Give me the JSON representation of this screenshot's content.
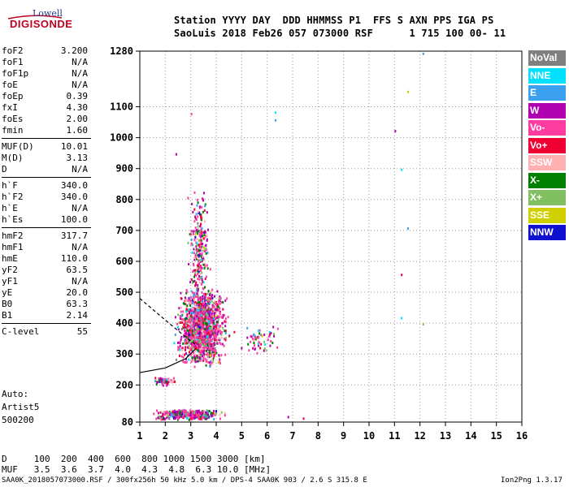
{
  "logo": {
    "line1": "Lowell",
    "line2": "DIGISONDE"
  },
  "header": {
    "line1": "Station YYYY DAY  DDD HHMMSS P1  FFS S AXN PPS IGA PS",
    "line2": "SaoLuis 2018 Feb26 057 073000 RSF      1 715 100 00- 11"
  },
  "params": [
    {
      "group": [
        {
          "name": "foF2",
          "value": "3.200"
        },
        {
          "name": "foF1",
          "value": "N/A"
        },
        {
          "name": "foF1p",
          "value": "N/A"
        },
        {
          "name": "foE",
          "value": "N/A"
        },
        {
          "name": "foEp",
          "value": "0.39"
        },
        {
          "name": "fxI",
          "value": "4.30"
        },
        {
          "name": "foEs",
          "value": "2.00"
        },
        {
          "name": "fmin",
          "value": "1.60"
        }
      ]
    },
    {
      "group": [
        {
          "name": "MUF(D)",
          "value": "10.01"
        },
        {
          "name": "M(D)",
          "value": "3.13"
        },
        {
          "name": "D",
          "value": "N/A"
        }
      ]
    },
    {
      "group": [
        {
          "name": "h`F",
          "value": "340.0"
        },
        {
          "name": "h`F2",
          "value": "340.0"
        },
        {
          "name": "h`E",
          "value": "N/A"
        },
        {
          "name": "h`Es",
          "value": "100.0"
        }
      ]
    },
    {
      "group": [
        {
          "name": "hmF2",
          "value": "317.7"
        },
        {
          "name": "hmF1",
          "value": "N/A"
        },
        {
          "name": "hmE",
          "value": "110.0"
        },
        {
          "name": "yF2",
          "value": "63.5"
        },
        {
          "name": "yF1",
          "value": "N/A"
        },
        {
          "name": "yE",
          "value": "20.0"
        },
        {
          "name": "B0",
          "value": "63.3"
        },
        {
          "name": "B1",
          "value": "2.14"
        }
      ]
    },
    {
      "group": [
        {
          "name": "C-level",
          "value": "55"
        }
      ]
    }
  ],
  "autoscale": {
    "line1": "Auto:",
    "line2": "Artist5",
    "line3": "500200"
  },
  "footer": {
    "d_line": "D     100  200  400  600  800 1000 1500 3000 [km]",
    "muf_line": "MUF   3.5  3.6  3.7  4.0  4.3  4.8  6.3 10.0 [MHz]",
    "info_line": "SAA0K_2018057073000.RSF / 300fx256h 50 kHz 5.0 km / DPS-4 SAA0K 903 / 2.6 S 315.8 E",
    "version": "Ion2Png 1.3.17"
  },
  "legend": [
    {
      "label": "NoVal",
      "color": "#808080"
    },
    {
      "label": "NNE",
      "color": "#00e0ff"
    },
    {
      "label": "E",
      "color": "#3ca0f0"
    },
    {
      "label": "W",
      "color": "#b000b0"
    },
    {
      "label": "Vo-",
      "color": "#ff3ca0"
    },
    {
      "label": "Vo+",
      "color": "#f00032"
    },
    {
      "label": "SSW",
      "color": "#ffb0b0"
    },
    {
      "label": "X-",
      "color": "#008000"
    },
    {
      "label": "X+",
      "color": "#80c060"
    },
    {
      "label": "SSE",
      "color": "#d0d000"
    },
    {
      "label": "NNW",
      "color": "#1010d0"
    }
  ],
  "chart_data": {
    "type": "scatter",
    "xlim": [
      1,
      16
    ],
    "ylim": [
      80,
      1280
    ],
    "x_ticks": [
      1,
      2,
      3,
      4,
      5,
      6,
      7,
      8,
      9,
      10,
      11,
      12,
      13,
      14,
      15,
      16
    ],
    "y_ticks": [
      80,
      200,
      300,
      400,
      500,
      600,
      700,
      800,
      900,
      1000,
      1100,
      1280
    ],
    "grid": true,
    "legend_position": "right",
    "profile_curve": [
      [
        1.0,
        240
      ],
      [
        2.0,
        255
      ],
      [
        2.8,
        285
      ],
      [
        3.2,
        317.7
      ]
    ],
    "profile_extrapolation": [
      [
        1.0,
        480
      ],
      [
        2.0,
        410
      ],
      [
        2.8,
        355
      ],
      [
        3.2,
        330
      ]
    ],
    "clusters": [
      {
        "name": "F2 trace",
        "x": [
          2.2,
          4.6
        ],
        "y": [
          260,
          520
        ],
        "density": 1400
      },
      {
        "name": "F2 tall column",
        "x": [
          2.8,
          3.8
        ],
        "y": [
          440,
          840
        ],
        "density": 260
      },
      {
        "name": "Es layer",
        "x": [
          1.2,
          4.6
        ],
        "y": [
          90,
          125
        ],
        "density": 380
      },
      {
        "name": "low echoes",
        "x": [
          1.4,
          2.6
        ],
        "y": [
          200,
          230
        ],
        "density": 60
      },
      {
        "name": "scatter right",
        "x": [
          4.6,
          6.6
        ],
        "y": [
          300,
          400
        ],
        "density": 60
      }
    ],
    "outliers": [
      {
        "x": 6.3,
        "y": 1085,
        "mark": "NNE"
      },
      {
        "x": 6.3,
        "y": 1060,
        "mark": "E"
      },
      {
        "x": 11.0,
        "y": 1025,
        "mark": "W"
      },
      {
        "x": 11.5,
        "y": 1152,
        "mark": "SSE"
      },
      {
        "x": 12.1,
        "y": 1275,
        "mark": "E"
      },
      {
        "x": 11.25,
        "y": 900,
        "mark": "NNE"
      },
      {
        "x": 11.5,
        "y": 710,
        "mark": "E"
      },
      {
        "x": 11.25,
        "y": 560,
        "mark": "Vo+"
      },
      {
        "x": 11.25,
        "y": 420,
        "mark": "NNE"
      },
      {
        "x": 12.1,
        "y": 400,
        "mark": "X+"
      },
      {
        "x": 2.4,
        "y": 950,
        "mark": "W"
      },
      {
        "x": 3.0,
        "y": 1080,
        "mark": "Vo-"
      },
      {
        "x": 7.4,
        "y": 95,
        "mark": "Vo+"
      },
      {
        "x": 6.8,
        "y": 100,
        "mark": "W"
      }
    ]
  }
}
